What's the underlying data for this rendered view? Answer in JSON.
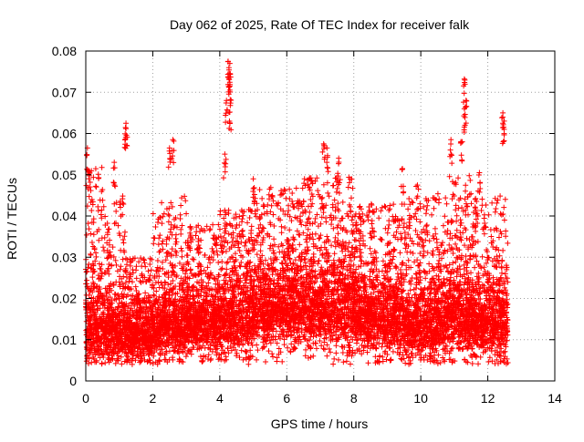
{
  "chart_data": {
    "type": "scatter",
    "title": "Day 062 of 2025, Rate Of TEC Index for receiver falk",
    "xlabel": "GPS time / hours",
    "ylabel": "ROTI / TECUs",
    "xlim": [
      0,
      14
    ],
    "ylim": [
      0,
      0.08
    ],
    "x_ticks": [
      "0",
      "2",
      "4",
      "6",
      "8",
      "10",
      "12",
      "14"
    ],
    "y_ticks": [
      "0",
      "0.01",
      "0.02",
      "0.03",
      "0.04",
      "0.05",
      "0.06",
      "0.07",
      "0.08"
    ],
    "grid": true,
    "marker": "+",
    "point_color": "#ff0000",
    "data_end_hour": 12.6,
    "notable_points": [
      {
        "x": 0.05,
        "y": 0.0565
      },
      {
        "x": 0.1,
        "y": 0.051
      },
      {
        "x": 0.85,
        "y": 0.053
      },
      {
        "x": 1.2,
        "y": 0.0625
      },
      {
        "x": 1.2,
        "y": 0.0612
      },
      {
        "x": 2.5,
        "y": 0.0565
      },
      {
        "x": 2.6,
        "y": 0.0585
      },
      {
        "x": 4.15,
        "y": 0.055
      },
      {
        "x": 4.2,
        "y": 0.068
      },
      {
        "x": 4.25,
        "y": 0.0775
      },
      {
        "x": 4.3,
        "y": 0.077
      },
      {
        "x": 4.28,
        "y": 0.0745
      },
      {
        "x": 4.3,
        "y": 0.0715
      },
      {
        "x": 4.3,
        "y": 0.0652
      },
      {
        "x": 5.0,
        "y": 0.049
      },
      {
        "x": 7.1,
        "y": 0.0575
      },
      {
        "x": 7.2,
        "y": 0.0565
      },
      {
        "x": 7.55,
        "y": 0.054
      },
      {
        "x": 9.45,
        "y": 0.0515
      },
      {
        "x": 9.9,
        "y": 0.0475
      },
      {
        "x": 10.9,
        "y": 0.0585
      },
      {
        "x": 11.3,
        "y": 0.0732
      },
      {
        "x": 11.35,
        "y": 0.068
      },
      {
        "x": 11.3,
        "y": 0.066
      },
      {
        "x": 11.2,
        "y": 0.058
      },
      {
        "x": 11.75,
        "y": 0.0505
      },
      {
        "x": 12.45,
        "y": 0.065
      },
      {
        "x": 12.45,
        "y": 0.0625
      }
    ],
    "density_profile": [
      {
        "x0": 0.0,
        "x1": 0.5,
        "base": 0.011,
        "spread": 0.009,
        "upper": 0.052
      },
      {
        "x0": 0.5,
        "x1": 1.2,
        "base": 0.011,
        "spread": 0.007,
        "upper": 0.045
      },
      {
        "x0": 1.2,
        "x1": 2.0,
        "base": 0.01,
        "spread": 0.006,
        "upper": 0.03
      },
      {
        "x0": 2.0,
        "x1": 3.0,
        "base": 0.012,
        "spread": 0.007,
        "upper": 0.045
      },
      {
        "x0": 3.0,
        "x1": 4.0,
        "base": 0.013,
        "spread": 0.007,
        "upper": 0.038
      },
      {
        "x0": 4.0,
        "x1": 5.0,
        "base": 0.014,
        "spread": 0.008,
        "upper": 0.042
      },
      {
        "x0": 5.0,
        "x1": 6.5,
        "base": 0.016,
        "spread": 0.008,
        "upper": 0.047
      },
      {
        "x0": 6.5,
        "x1": 8.0,
        "base": 0.016,
        "spread": 0.009,
        "upper": 0.05
      },
      {
        "x0": 8.0,
        "x1": 9.5,
        "base": 0.014,
        "spread": 0.008,
        "upper": 0.043
      },
      {
        "x0": 9.5,
        "x1": 10.5,
        "base": 0.012,
        "spread": 0.007,
        "upper": 0.045
      },
      {
        "x0": 10.5,
        "x1": 11.5,
        "base": 0.014,
        "spread": 0.009,
        "upper": 0.05
      },
      {
        "x0": 11.5,
        "x1": 12.6,
        "base": 0.013,
        "spread": 0.008,
        "upper": 0.045
      }
    ]
  }
}
